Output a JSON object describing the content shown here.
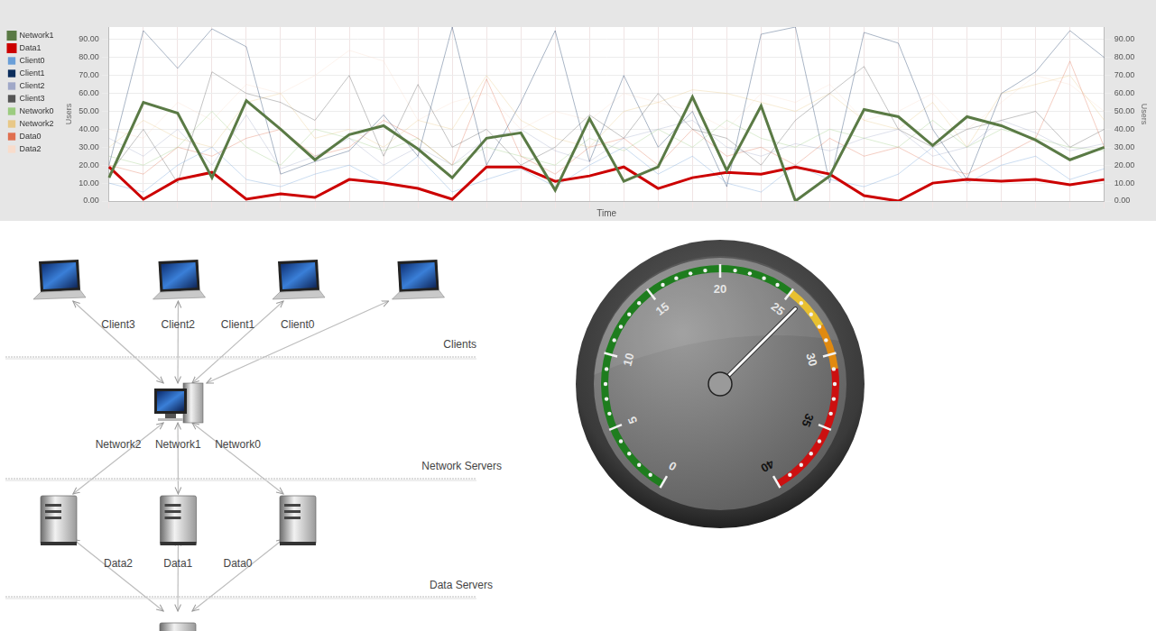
{
  "chart_data": [
    {
      "type": "line",
      "xlabel": "Time",
      "ylabel": "Users",
      "y2label": "Users",
      "categories": [
        null,
        null,
        null,
        null,
        null,
        null,
        null,
        null,
        null,
        null,
        null,
        null,
        null,
        null,
        null,
        null,
        null,
        null,
        null,
        null,
        null,
        null,
        null,
        null,
        null,
        null,
        null,
        null,
        null,
        null
      ],
      "ylim": [
        0,
        97
      ],
      "yticks": [
        {
          "value": 0,
          "label": "0.00"
        },
        {
          "value": 10,
          "label": "10.00"
        },
        {
          "value": 20,
          "label": "20.00"
        },
        {
          "value": 30,
          "label": "30.00"
        },
        {
          "value": 40,
          "label": "40.00"
        },
        {
          "value": 50,
          "label": "50.00"
        },
        {
          "value": 60,
          "label": "60.00"
        },
        {
          "value": 70,
          "label": "70.00"
        },
        {
          "value": 80,
          "label": "80.00"
        },
        {
          "value": 90,
          "label": "90.00"
        }
      ],
      "y2lim": [
        0,
        97
      ],
      "y2ticks": [
        {
          "value": 0,
          "label": "0.00"
        },
        {
          "value": 10,
          "label": "10.00"
        },
        {
          "value": 20,
          "label": "20.00"
        },
        {
          "value": 30,
          "label": "30.00"
        },
        {
          "value": 40,
          "label": "40.00"
        },
        {
          "value": 50,
          "label": "50.00"
        },
        {
          "value": 60,
          "label": "60.00"
        },
        {
          "value": 70,
          "label": "70.00"
        },
        {
          "value": 80,
          "label": "80.00"
        },
        {
          "value": 90,
          "label": "90.00"
        }
      ],
      "grid": true,
      "legend": "left",
      "tick_labels": "y",
      "series": [
        {
          "name": "Client0",
          "color": "#6a9fd8",
          "line_style": "thin",
          "values": [
            10,
            5,
            20,
            30,
            12,
            8,
            15,
            20,
            10,
            25,
            5,
            12,
            18,
            8,
            20,
            30,
            15,
            25,
            10,
            5,
            20,
            12,
            8,
            15,
            30,
            10,
            20,
            25,
            12,
            18
          ]
        },
        {
          "name": "Client1",
          "color": "#0b2d5c",
          "line_style": "thin",
          "values": [
            20,
            95,
            74,
            96,
            86,
            15,
            22,
            28,
            48,
            25,
            97,
            20,
            55,
            95,
            22,
            70,
            30,
            50,
            8,
            93,
            97,
            10,
            94,
            88,
            40,
            12,
            60,
            72,
            95,
            80
          ]
        },
        {
          "name": "Client2",
          "color": "#a0a8c8",
          "line_style": "thin",
          "values": [
            35,
            25,
            40,
            20,
            48,
            18,
            25,
            35,
            20,
            30,
            20,
            35,
            40,
            28,
            22,
            35,
            40,
            45,
            30,
            25,
            32,
            28,
            35,
            40,
            25,
            30,
            45,
            38,
            28,
            32
          ]
        },
        {
          "name": "Client3",
          "color": "#555555",
          "line_style": "thin",
          "values": [
            15,
            40,
            10,
            72,
            60,
            55,
            45,
            70,
            25,
            65,
            30,
            40,
            20,
            30,
            48,
            35,
            60,
            40,
            35,
            20,
            45,
            60,
            75,
            40,
            30,
            40,
            45,
            50,
            30,
            40
          ]
        },
        {
          "name": "Network0",
          "color": "#9ccc80",
          "line_style": "thin",
          "values": [
            25,
            20,
            30,
            50,
            30,
            20,
            40,
            35,
            28,
            35,
            20,
            30,
            25,
            20,
            35,
            28,
            40,
            30,
            45,
            35,
            30,
            40,
            35,
            30,
            45,
            30,
            40,
            35,
            30,
            28
          ]
        },
        {
          "name": "Network1",
          "color": "#5a7a45",
          "line_style": "thick",
          "values": [
            13,
            55,
            49,
            13,
            56,
            40,
            23,
            37,
            42,
            29,
            13,
            35,
            38,
            6,
            46,
            11,
            19,
            58,
            17,
            53,
            0,
            14,
            51,
            47,
            31,
            47,
            42,
            34,
            23,
            30
          ]
        },
        {
          "name": "Network2",
          "color": "#e8c888",
          "line_style": "thin",
          "values": [
            30,
            45,
            35,
            30,
            55,
            60,
            35,
            40,
            30,
            45,
            40,
            70,
            45,
            35,
            30,
            50,
            55,
            62,
            60,
            55,
            50,
            60,
            45,
            40,
            55,
            30,
            60,
            65,
            70,
            45
          ]
        },
        {
          "name": "Data0",
          "color": "#e07050",
          "line_style": "thin",
          "values": [
            20,
            15,
            30,
            25,
            35,
            40,
            25,
            30,
            45,
            35,
            20,
            68,
            25,
            15,
            30,
            35,
            20,
            40,
            25,
            30,
            20,
            35,
            25,
            30,
            20,
            15,
            25,
            35,
            78,
            30
          ]
        },
        {
          "name": "Data1",
          "color": "#cc0000",
          "line_style": "thick",
          "values": [
            19,
            1,
            12,
            16,
            1,
            4,
            2,
            12,
            10,
            7,
            1,
            19,
            19,
            11,
            14,
            19,
            7,
            13,
            16,
            15,
            19,
            15,
            3,
            0,
            10,
            12,
            11,
            12,
            9,
            12
          ]
        },
        {
          "name": "Data2",
          "color": "#f8dccc",
          "line_style": "thin",
          "values": [
            40,
            35,
            55,
            45,
            65,
            60,
            70,
            84,
            78,
            45,
            55,
            60,
            40,
            50,
            45,
            60,
            55,
            50,
            40,
            60,
            55,
            65,
            45,
            50,
            60,
            40,
            55,
            70,
            65,
            50
          ]
        }
      ]
    },
    {
      "type": "gauge",
      "value": 26,
      "ylim": [
        0,
        40
      ],
      "yticks": [
        0,
        5,
        10,
        15,
        20,
        25,
        30,
        35,
        40
      ],
      "minor_ticks": [
        1,
        2,
        3,
        4,
        6,
        7,
        8,
        9,
        11,
        12,
        13,
        14,
        16,
        17,
        18,
        19,
        21,
        22,
        23,
        24,
        26,
        27,
        28,
        29,
        31,
        32,
        33,
        34,
        36,
        37,
        38,
        39
      ],
      "bands": [
        {
          "from": 0,
          "to": 25,
          "color": "#1e7d1e"
        },
        {
          "from": 25,
          "to": 28,
          "color": "#e8c030"
        },
        {
          "from": 28,
          "to": 31,
          "color": "#e08a10"
        },
        {
          "from": 31,
          "to": 40,
          "color": "#cc1010"
        }
      ]
    }
  ],
  "diagram": {
    "layers": [
      {
        "label": "Clients",
        "links": [
          "Client3",
          "Client2",
          "Client1",
          "Client0"
        ]
      },
      {
        "label": "Network Servers",
        "links": [
          "Network2",
          "Network1",
          "Network0"
        ]
      },
      {
        "label": "Data Servers",
        "links": [
          "Data2",
          "Data1",
          "Data0"
        ]
      }
    ]
  }
}
